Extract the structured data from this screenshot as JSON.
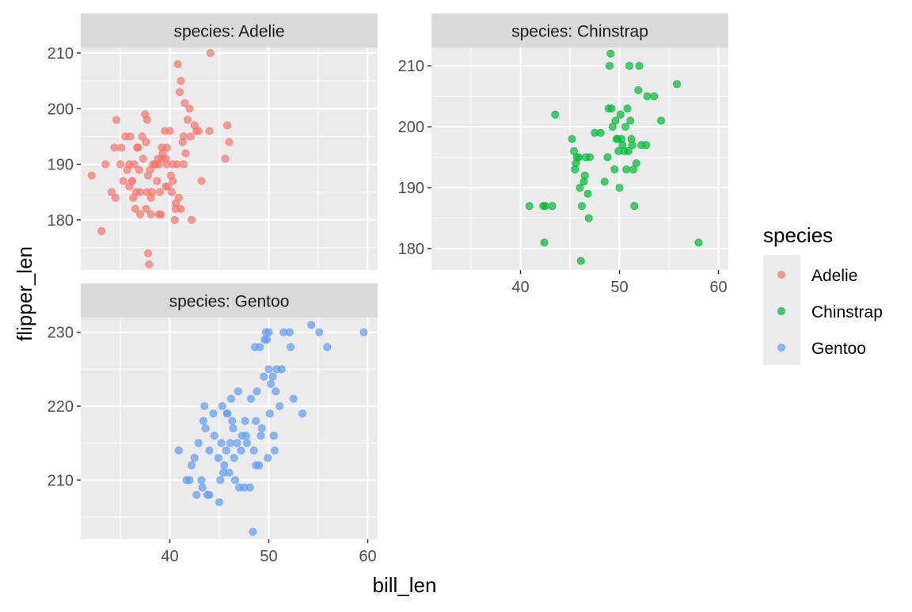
{
  "chart_data": {
    "type": "scatter",
    "xlabel": "bill_len",
    "ylabel": "flipper_len",
    "legend": {
      "title": "species",
      "position": "right"
    },
    "grid": true,
    "series": [
      {
        "name": "Adelie",
        "facet_title": "species: Adelie",
        "color": "#F8766D",
        "xlim": [
          31,
          61
        ],
        "ylim": [
          171,
          211
        ],
        "x_ticks": [],
        "y_ticks": [
          180,
          190,
          200,
          210
        ],
        "points": [
          [
            32.1,
            188
          ],
          [
            33.1,
            178
          ],
          [
            34.5,
            184
          ],
          [
            34.1,
            185
          ],
          [
            33.5,
            190
          ],
          [
            34.4,
            193
          ],
          [
            34.6,
            198
          ],
          [
            35.0,
            190
          ],
          [
            35.1,
            193
          ],
          [
            35.3,
            187
          ],
          [
            35.5,
            195
          ],
          [
            35.7,
            189
          ],
          [
            35.9,
            186
          ],
          [
            36.0,
            195
          ],
          [
            35.9,
            190
          ],
          [
            36.2,
            187
          ],
          [
            36.3,
            184
          ],
          [
            36.4,
            190
          ],
          [
            36.6,
            185
          ],
          [
            36.7,
            193
          ],
          [
            36.8,
            193
          ],
          [
            36.9,
            189
          ],
          [
            37.0,
            185
          ],
          [
            37.2,
            195
          ],
          [
            37.3,
            191
          ],
          [
            37.5,
            199
          ],
          [
            37.6,
            194
          ],
          [
            37.7,
            185
          ],
          [
            37.8,
            188
          ],
          [
            37.9,
            172
          ],
          [
            37.8,
            174
          ],
          [
            38.0,
            189
          ],
          [
            38.1,
            181
          ],
          [
            38.2,
            185
          ],
          [
            38.3,
            190
          ],
          [
            38.5,
            190
          ],
          [
            38.6,
            190
          ],
          [
            38.7,
            187
          ],
          [
            38.8,
            191
          ],
          [
            38.9,
            190
          ],
          [
            39.0,
            185
          ],
          [
            39.1,
            181
          ],
          [
            39.2,
            191
          ],
          [
            39.3,
            192
          ],
          [
            39.5,
            196
          ],
          [
            39.6,
            186
          ],
          [
            39.7,
            190
          ],
          [
            39.8,
            186
          ],
          [
            40.0,
            196
          ],
          [
            40.2,
            185
          ],
          [
            40.3,
            190
          ],
          [
            40.5,
            180
          ],
          [
            40.6,
            183
          ],
          [
            40.7,
            190
          ],
          [
            40.8,
            208
          ],
          [
            40.9,
            184
          ],
          [
            41.0,
            203
          ],
          [
            41.1,
            205
          ],
          [
            41.3,
            194
          ],
          [
            41.4,
            195
          ],
          [
            41.5,
            201
          ],
          [
            41.6,
            192
          ],
          [
            41.8,
            198
          ],
          [
            42.0,
            200
          ],
          [
            42.1,
            195
          ],
          [
            42.2,
            180
          ],
          [
            42.5,
            197
          ],
          [
            42.7,
            196
          ],
          [
            42.9,
            196
          ],
          [
            43.2,
            187
          ],
          [
            44.1,
            210
          ],
          [
            44.0,
            196
          ],
          [
            45.8,
            197
          ],
          [
            45.6,
            191
          ],
          [
            46.0,
            194
          ],
          [
            36.2,
            187
          ],
          [
            37.6,
            182
          ],
          [
            38.1,
            184
          ],
          [
            39.2,
            193
          ],
          [
            39.6,
            191
          ],
          [
            40.1,
            188
          ],
          [
            40.6,
            182
          ],
          [
            41.1,
            182
          ],
          [
            36.5,
            182
          ],
          [
            37.0,
            181
          ],
          [
            37.7,
            198
          ],
          [
            38.9,
            181
          ],
          [
            39.7,
            193
          ],
          [
            40.3,
            187
          ],
          [
            41.4,
            190
          ]
        ]
      },
      {
        "name": "Chinstrap",
        "facet_title": "species: Chinstrap",
        "color": "#00BA38",
        "xlim": [
          31,
          61
        ],
        "ylim": [
          176.5,
          213
        ],
        "x_ticks": [
          40,
          50,
          60
        ],
        "y_ticks": [
          180,
          190,
          200,
          210
        ],
        "points": [
          [
            40.9,
            187
          ],
          [
            42.3,
            187
          ],
          [
            42.5,
            187
          ],
          [
            43.2,
            187
          ],
          [
            42.4,
            181
          ],
          [
            43.5,
            202
          ],
          [
            45.2,
            198
          ],
          [
            45.4,
            196
          ],
          [
            45.5,
            193
          ],
          [
            45.6,
            194
          ],
          [
            45.7,
            195
          ],
          [
            45.9,
            195
          ],
          [
            46.0,
            190
          ],
          [
            46.1,
            178
          ],
          [
            46.2,
            187
          ],
          [
            46.4,
            191
          ],
          [
            46.5,
            192
          ],
          [
            46.6,
            195
          ],
          [
            46.8,
            189
          ],
          [
            46.9,
            185
          ],
          [
            47.0,
            195
          ],
          [
            47.5,
            199
          ],
          [
            48.1,
            199
          ],
          [
            48.5,
            191
          ],
          [
            48.8,
            195
          ],
          [
            49.0,
            210
          ],
          [
            49.1,
            212
          ],
          [
            49.2,
            203
          ],
          [
            49.3,
            200
          ],
          [
            49.5,
            193
          ],
          [
            49.6,
            201
          ],
          [
            49.8,
            198
          ],
          [
            50.0,
            190
          ],
          [
            50.1,
            202
          ],
          [
            50.2,
            198
          ],
          [
            50.3,
            197
          ],
          [
            50.5,
            196
          ],
          [
            50.6,
            200
          ],
          [
            50.8,
            203
          ],
          [
            51.0,
            210
          ],
          [
            51.1,
            201
          ],
          [
            51.3,
            197
          ],
          [
            51.5,
            187
          ],
          [
            51.7,
            194
          ],
          [
            51.9,
            206
          ],
          [
            52.0,
            210
          ],
          [
            52.2,
            197
          ],
          [
            52.7,
            197
          ],
          [
            52.8,
            205
          ],
          [
            53.5,
            205
          ],
          [
            54.2,
            201
          ],
          [
            55.8,
            207
          ],
          [
            58.0,
            181
          ],
          [
            50.9,
            196
          ],
          [
            49.7,
            198
          ],
          [
            48.9,
            203
          ],
          [
            51.4,
            193
          ],
          [
            50.7,
            193
          ],
          [
            51.2,
            198
          ],
          [
            49.9,
            196
          ]
        ]
      },
      {
        "name": "Gentoo",
        "facet_title": "species: Gentoo",
        "color": "#619CFF",
        "xlim": [
          31,
          61
        ],
        "ylim": [
          202,
          232
        ],
        "x_ticks": [
          40,
          50,
          60
        ],
        "y_ticks": [
          210,
          220,
          230
        ],
        "points": [
          [
            40.9,
            214
          ],
          [
            41.7,
            210
          ],
          [
            42.0,
            210
          ],
          [
            42.2,
            212
          ],
          [
            42.7,
            208
          ],
          [
            42.9,
            215
          ],
          [
            43.2,
            210
          ],
          [
            43.3,
            209
          ],
          [
            43.4,
            218
          ],
          [
            43.5,
            220
          ],
          [
            43.6,
            217
          ],
          [
            43.8,
            208
          ],
          [
            44.0,
            208
          ],
          [
            44.4,
            219
          ],
          [
            44.5,
            216
          ],
          [
            44.9,
            213
          ],
          [
            45.1,
            210
          ],
          [
            45.2,
            215
          ],
          [
            45.3,
            220
          ],
          [
            45.4,
            211
          ],
          [
            45.5,
            212
          ],
          [
            45.7,
            214
          ],
          [
            45.8,
            219
          ],
          [
            46.1,
            215
          ],
          [
            46.2,
            221
          ],
          [
            46.4,
            217
          ],
          [
            46.5,
            213
          ],
          [
            46.6,
            210
          ],
          [
            46.8,
            215
          ],
          [
            46.9,
            222
          ],
          [
            47.2,
            214
          ],
          [
            47.3,
            216
          ],
          [
            47.5,
            209
          ],
          [
            47.7,
            216
          ],
          [
            47.8,
            215
          ],
          [
            48.1,
            209
          ],
          [
            48.2,
            221
          ],
          [
            48.4,
            203
          ],
          [
            48.5,
            214
          ],
          [
            48.7,
            212
          ],
          [
            48.8,
            222
          ],
          [
            49.0,
            212
          ],
          [
            49.1,
            228
          ],
          [
            49.2,
            216
          ],
          [
            49.3,
            217
          ],
          [
            49.5,
            224
          ],
          [
            49.6,
            229
          ],
          [
            49.8,
            229
          ],
          [
            49.9,
            213
          ],
          [
            50.0,
            225
          ],
          [
            50.1,
            219
          ],
          [
            50.2,
            223
          ],
          [
            50.4,
            224
          ],
          [
            50.5,
            216
          ],
          [
            50.7,
            222
          ],
          [
            50.8,
            225
          ],
          [
            51.1,
            220
          ],
          [
            51.3,
            225
          ],
          [
            51.5,
            230
          ],
          [
            52.1,
            230
          ],
          [
            52.2,
            228
          ],
          [
            52.5,
            221
          ],
          [
            53.4,
            219
          ],
          [
            54.3,
            231
          ],
          [
            55.1,
            230
          ],
          [
            55.9,
            228
          ],
          [
            59.6,
            230
          ],
          [
            47.0,
            209
          ],
          [
            46.0,
            211
          ],
          [
            45.0,
            207
          ],
          [
            44.0,
            214
          ],
          [
            42.5,
            213
          ],
          [
            49.7,
            230
          ],
          [
            48.6,
            228
          ],
          [
            50.0,
            230
          ],
          [
            47.6,
            218
          ],
          [
            46.3,
            218
          ],
          [
            45.8,
            219
          ],
          [
            48.7,
            218
          ],
          [
            50.6,
            214
          ]
        ]
      }
    ]
  }
}
